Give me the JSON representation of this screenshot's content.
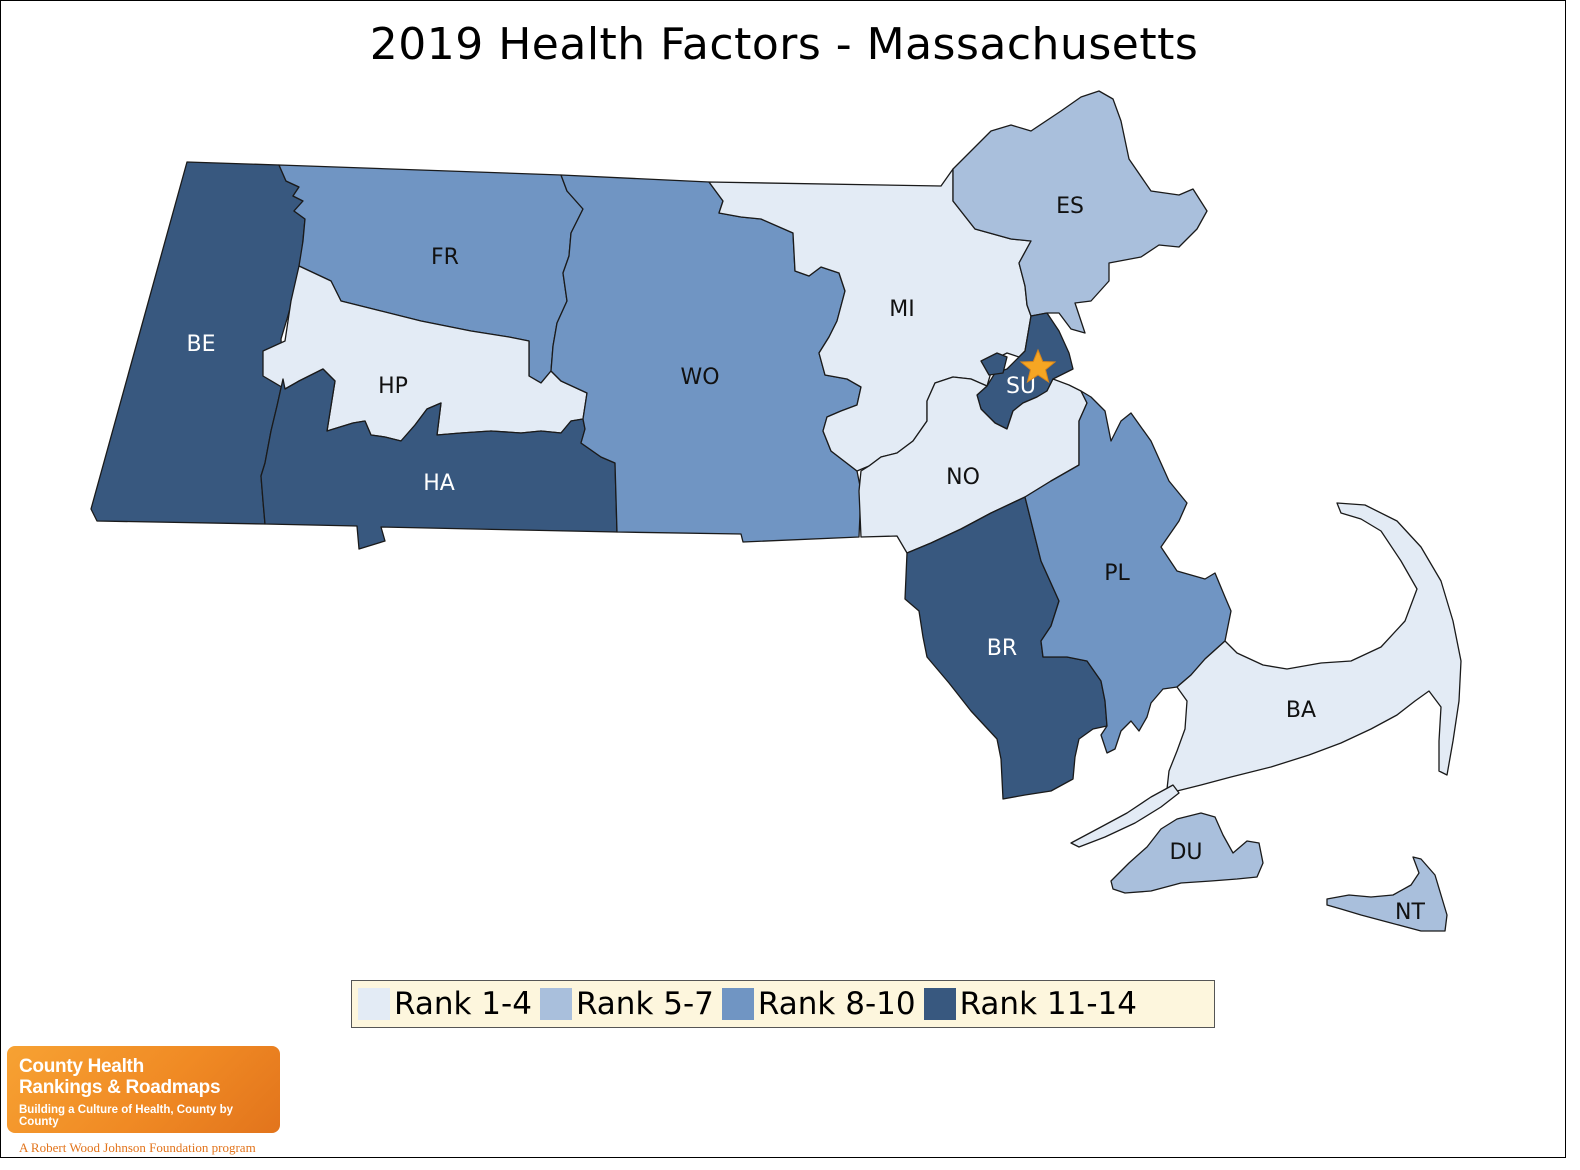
{
  "title": "2019 Health Factors - Massachusetts",
  "colors": {
    "rank_1_4": "#e3ebf5",
    "rank_5_7": "#a9bfdc",
    "rank_8_10": "#7095c3",
    "rank_11_14": "#38587f",
    "star": "#f6a623",
    "legend_bg": "#fdf6dd"
  },
  "legend": [
    {
      "label": "Rank 1-4",
      "color": "#e3ebf5"
    },
    {
      "label": "Rank 5-7",
      "color": "#a9bfdc"
    },
    {
      "label": "Rank 8-10",
      "color": "#7095c3"
    },
    {
      "label": "Rank 11-14",
      "color": "#38587f"
    }
  ],
  "counties": [
    {
      "code": "BE",
      "rank_group": "Rank 11-14"
    },
    {
      "code": "FR",
      "rank_group": "Rank 8-10"
    },
    {
      "code": "HP",
      "rank_group": "Rank 1-4"
    },
    {
      "code": "HA",
      "rank_group": "Rank 11-14"
    },
    {
      "code": "WO",
      "rank_group": "Rank 8-10"
    },
    {
      "code": "MI",
      "rank_group": "Rank 1-4"
    },
    {
      "code": "ES",
      "rank_group": "Rank 5-7"
    },
    {
      "code": "SU",
      "rank_group": "Rank 11-14"
    },
    {
      "code": "NO",
      "rank_group": "Rank 1-4"
    },
    {
      "code": "PL",
      "rank_group": "Rank 8-10"
    },
    {
      "code": "BR",
      "rank_group": "Rank 11-14"
    },
    {
      "code": "BA",
      "rank_group": "Rank 1-4"
    },
    {
      "code": "DU",
      "rank_group": "Rank 5-7"
    },
    {
      "code": "NT",
      "rank_group": "Rank 5-7"
    }
  ],
  "marker": {
    "type": "star",
    "county": "SU"
  },
  "logo": {
    "title_line1": "County Health",
    "title_line2": "Rankings & Roadmaps",
    "tagline": "Building a Culture of Health, County by County",
    "program": "A Robert Wood Johnson Foundation program"
  }
}
